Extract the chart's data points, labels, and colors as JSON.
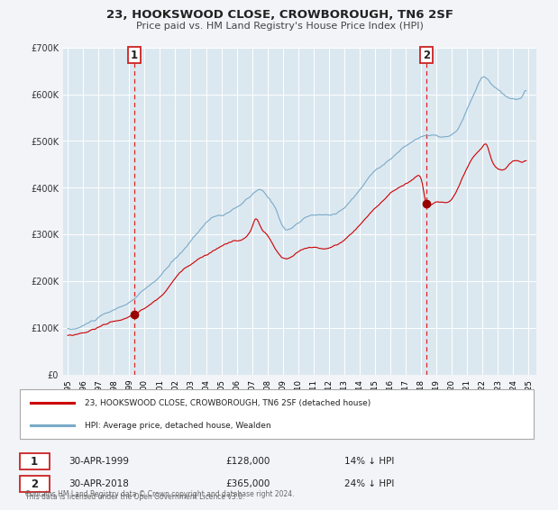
{
  "title": "23, HOOKSWOOD CLOSE, CROWBOROUGH, TN6 2SF",
  "subtitle": "Price paid vs. HM Land Registry's House Price Index (HPI)",
  "background_color": "#f2f4f8",
  "plot_bg_color": "#dce8f0",
  "grid_color": "#ffffff",
  "ylim": [
    0,
    700000
  ],
  "yticks": [
    0,
    100000,
    200000,
    300000,
    400000,
    500000,
    600000,
    700000
  ],
  "ytick_labels": [
    "£0",
    "£100K",
    "£200K",
    "£300K",
    "£400K",
    "£500K",
    "£600K",
    "£700K"
  ],
  "xlim_start": 1994.7,
  "xlim_end": 2025.5,
  "xticks": [
    1995,
    1996,
    1997,
    1998,
    1999,
    2000,
    2001,
    2002,
    2003,
    2004,
    2005,
    2006,
    2007,
    2008,
    2009,
    2010,
    2011,
    2012,
    2013,
    2014,
    2015,
    2016,
    2017,
    2018,
    2019,
    2020,
    2021,
    2022,
    2023,
    2024,
    2025
  ],
  "sale1_x": 1999.33,
  "sale1_y": 128000,
  "sale2_x": 2018.33,
  "sale2_y": 365000,
  "sale_color": "#990000",
  "hpi_color": "#7aaac8",
  "property_line_color": "#cc0000",
  "annotation1_label": "1",
  "annotation2_label": "2",
  "legend_label1": "23, HOOKSWOOD CLOSE, CROWBOROUGH, TN6 2SF (detached house)",
  "legend_label2": "HPI: Average price, detached house, Wealden",
  "table_row1": [
    "1",
    "30-APR-1999",
    "£128,000",
    "14% ↓ HPI"
  ],
  "table_row2": [
    "2",
    "30-APR-2018",
    "£365,000",
    "24% ↓ HPI"
  ],
  "footer_line1": "Contains HM Land Registry data © Crown copyright and database right 2024.",
  "footer_line2": "This data is licensed under the Open Government Licence v3.0."
}
